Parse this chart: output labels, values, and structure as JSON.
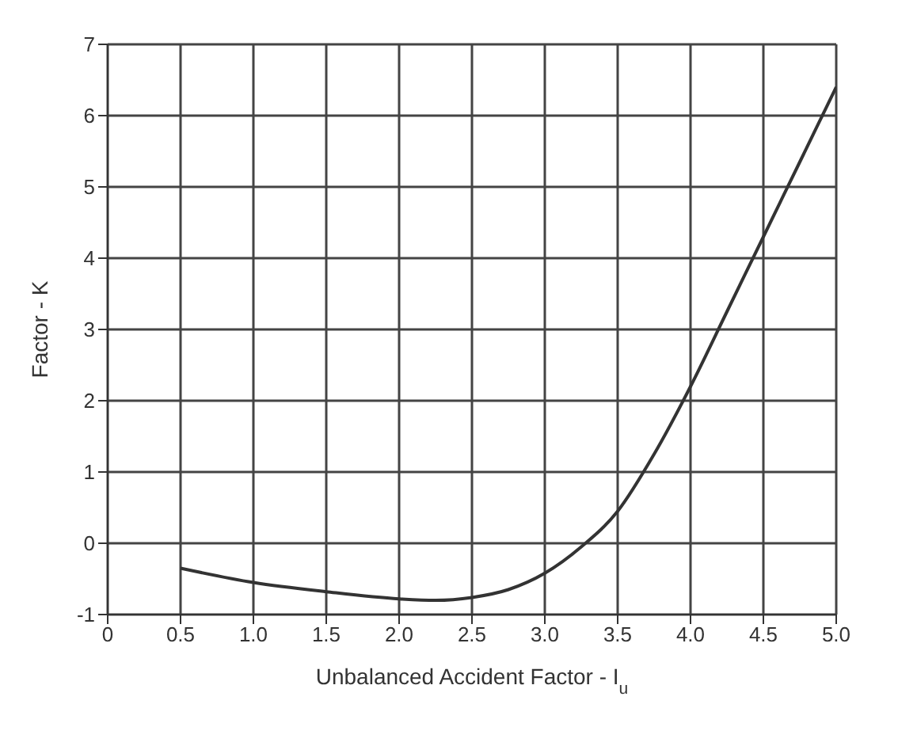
{
  "chart_data": {
    "type": "line",
    "xlabel": "Unbalanced Accident Factor - I$_{u}$",
    "ylabel": "Factor - K",
    "x": [
      0.5,
      1.0,
      1.5,
      2.0,
      2.25,
      2.5,
      2.75,
      3.0,
      3.25,
      3.5,
      3.75,
      4.0,
      4.25,
      4.5,
      4.75,
      5.0
    ],
    "series": [
      {
        "color": "#333333",
        "values": [
          -0.35,
          -0.55,
          -0.68,
          -0.78,
          -0.8,
          -0.76,
          -0.65,
          -0.42,
          -0.05,
          0.45,
          1.25,
          2.2,
          3.25,
          4.3,
          5.35,
          6.4
        ]
      }
    ],
    "xlim": [
      0,
      5
    ],
    "ylim": [
      -1,
      7
    ],
    "xticks": [
      0,
      0.5,
      {
        "value": 1,
        "label": "1.0"
      },
      1.5,
      {
        "value": 2,
        "label": "2.0"
      },
      2.5,
      {
        "value": 3,
        "label": "3.0"
      },
      3.5,
      {
        "value": 4,
        "label": "4.0"
      },
      4.5,
      {
        "value": 5,
        "label": "5.0"
      }
    ],
    "yticks": [
      -1,
      0,
      1,
      2,
      3,
      4,
      5,
      6,
      7
    ],
    "grid": true,
    "marker": "none",
    "line_style": "solid",
    "legend": false
  }
}
